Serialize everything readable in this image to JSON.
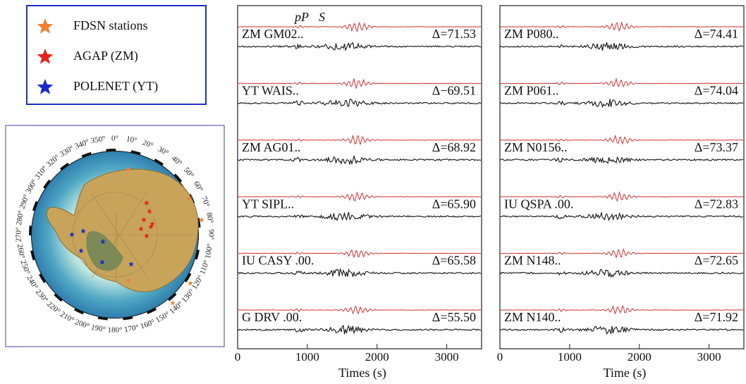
{
  "legend": {
    "items": [
      "FDSN stations",
      "AGAP (ZM)",
      "POLENET (YT)"
    ]
  },
  "map": {
    "longitude_labels": [
      "0°",
      "10°",
      "20°",
      "30°",
      "40°",
      "50°",
      "60°",
      "70°",
      "80°",
      "90°",
      "100°",
      "110°",
      "120°",
      "130°",
      "140°",
      "150°",
      "160°",
      "170°",
      "180°",
      "190°",
      "200°",
      "210°",
      "220°",
      "230°",
      "240°",
      "250°",
      "260°",
      "270°",
      "280°",
      "290°",
      "300°",
      "310°",
      "320°",
      "330°",
      "340°",
      "350°"
    ]
  },
  "panels": [
    {
      "phase_labels": [
        "pP",
        "S"
      ],
      "traces": [
        {
          "station": "ZM GM02..",
          "delta": "Δ=71.53"
        },
        {
          "station": "YT WAIS..",
          "delta": "Δ−69.51"
        },
        {
          "station": "ZM AG01..",
          "delta": "Δ=68.92"
        },
        {
          "station": "YT SIPL..",
          "delta": "Δ=65.90"
        },
        {
          "station": "IU CASY .00.",
          "delta": "Δ=65.58"
        },
        {
          "station": "G DRV .00.",
          "delta": "Δ=55.50"
        }
      ],
      "xlim": [
        0,
        3500
      ],
      "xticks": [
        0,
        1000,
        2000,
        3000
      ],
      "xlabel": "Times (s)"
    },
    {
      "traces": [
        {
          "station": "ZM P080..",
          "delta": "Δ=74.41"
        },
        {
          "station": "ZM P061..",
          "delta": "Δ=74.04"
        },
        {
          "station": "ZM N0156..",
          "delta": "Δ=73.37"
        },
        {
          "station": "IU QSPA .00.",
          "delta": "Δ=72.83"
        },
        {
          "station": "ZM N148..",
          "delta": "Δ=72.65"
        },
        {
          "station": "ZM N140..",
          "delta": "Δ=71.92"
        }
      ],
      "xlim": [
        0,
        3500
      ],
      "xticks": [
        0,
        1000,
        2000,
        3000
      ],
      "xlabel": "Time (s)"
    }
  ]
}
